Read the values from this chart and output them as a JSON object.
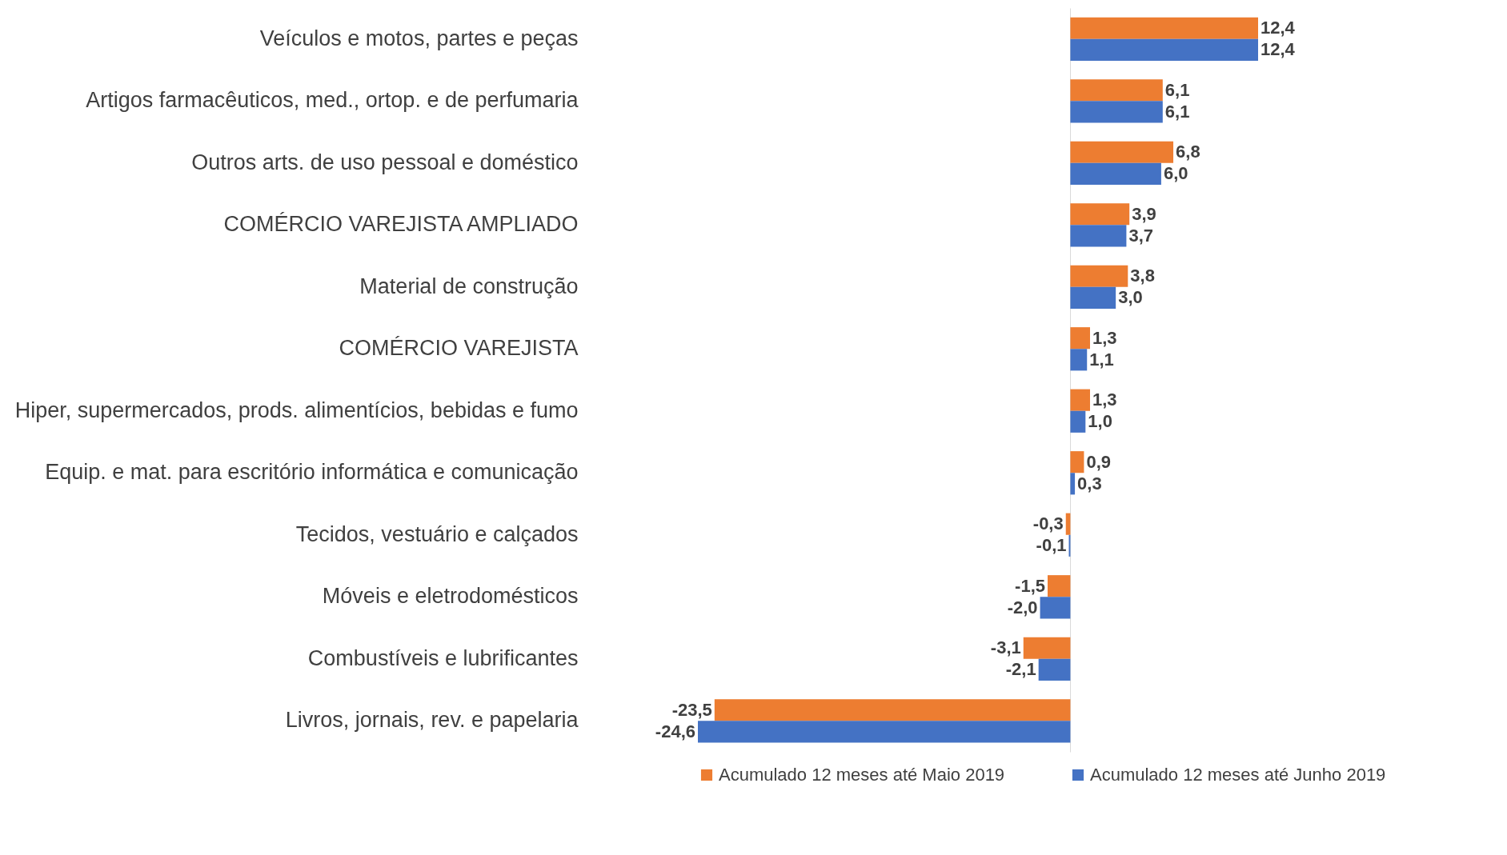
{
  "chart_data": {
    "type": "bar",
    "orientation": "horizontal",
    "legend": "bottom",
    "categories": [
      "Veículos e motos, partes e peças",
      "Artigos farmacêuticos, med., ortop. e de perfumaria",
      "Outros arts. de uso pessoal e doméstico",
      "COMÉRCIO VAREJISTA AMPLIADO",
      "Material de construção",
      "COMÉRCIO VAREJISTA",
      "Hiper, supermercados, prods.  alimentícios, bebidas e fumo",
      "Equip. e mat. para escritório informática e comunicação",
      "Tecidos, vestuário e calçados",
      "Móveis e eletrodomésticos",
      "Combustíveis e lubrificantes",
      "Livros, jornais, rev. e papelaria"
    ],
    "series": [
      {
        "name": "Acumulado 12 meses até Maio 2019",
        "color": "#ed7d31",
        "values": [
          12.4,
          6.1,
          6.8,
          3.9,
          3.8,
          1.3,
          1.3,
          0.9,
          -0.3,
          -1.5,
          -3.1,
          -23.5
        ],
        "value_labels": [
          "12,4",
          "6,1",
          "6,8",
          "3,9",
          "3,8",
          "1,3",
          "1,3",
          "0,9",
          "-0,3",
          "-1,5",
          "-3,1",
          "-23,5"
        ]
      },
      {
        "name": "Acumulado 12 meses até  Junho 2019",
        "color": "#4472c4",
        "values": [
          12.4,
          6.1,
          6.0,
          3.7,
          3.0,
          1.1,
          1.0,
          0.3,
          -0.1,
          -2.0,
          -2.1,
          -24.6
        ],
        "value_labels": [
          "12,4",
          "6,1",
          "6,0",
          "3,7",
          "3,0",
          "1,1",
          "1,0",
          "0,3",
          "-0,1",
          "-2,0",
          "-2,1",
          "-24,6"
        ]
      }
    ]
  }
}
